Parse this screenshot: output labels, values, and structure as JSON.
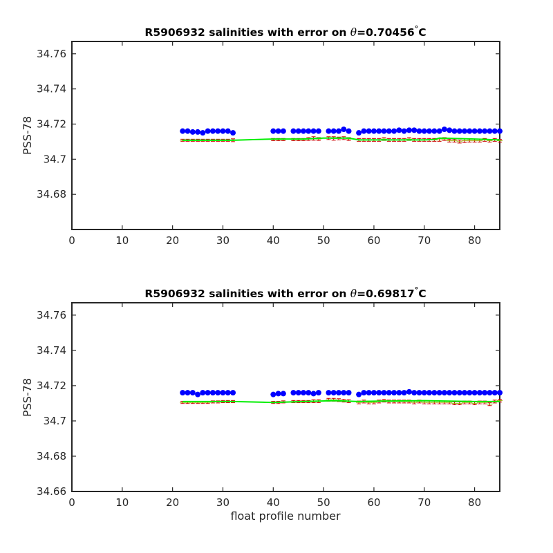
{
  "chart_data": [
    {
      "type": "scatter",
      "title_prefix": "R5906932 salinities with error on ",
      "title_symbol": "θ",
      "title_value": "=0.70456",
      "title_degree": "°",
      "title_unit": "C",
      "xlabel": "",
      "ylabel": "PSS-78",
      "xlim": [
        0,
        85
      ],
      "ylim": [
        34.66,
        34.767
      ],
      "xticks": [
        0,
        10,
        20,
        30,
        40,
        50,
        60,
        70,
        80
      ],
      "xtick_labels": [
        "0",
        "10",
        "20",
        "30",
        "40",
        "50",
        "60",
        "70",
        "80"
      ],
      "yticks": [
        34.68,
        34.7,
        34.72,
        34.74,
        34.76
      ],
      "ytick_labels": [
        "34.68",
        "34.7",
        "34.72",
        "34.74",
        "34.76"
      ],
      "grid": false,
      "series": [
        {
          "marker": "filled-circle",
          "color": "#0000ff",
          "x": [
            22,
            23,
            24,
            25,
            26,
            27,
            28,
            29,
            30,
            31,
            32,
            40,
            41,
            42,
            44,
            45,
            46,
            47,
            48,
            49,
            51,
            52,
            53,
            54,
            55,
            57,
            58,
            59,
            60,
            61,
            62,
            63,
            64,
            65,
            66,
            67,
            68,
            69,
            70,
            71,
            72,
            73,
            74,
            75,
            76,
            77,
            78,
            79,
            80,
            81,
            82,
            83,
            84,
            85
          ],
          "y": [
            34.716,
            34.716,
            34.7155,
            34.7155,
            34.715,
            34.716,
            34.716,
            34.716,
            34.716,
            34.716,
            34.715,
            34.716,
            34.716,
            34.716,
            34.716,
            34.716,
            34.716,
            34.716,
            34.716,
            34.716,
            34.716,
            34.716,
            34.716,
            34.717,
            34.716,
            34.715,
            34.716,
            34.716,
            34.716,
            34.716,
            34.716,
            34.716,
            34.716,
            34.7165,
            34.716,
            34.7165,
            34.7165,
            34.716,
            34.716,
            34.716,
            34.716,
            34.716,
            34.717,
            34.7165,
            34.716,
            34.716,
            34.716,
            34.716,
            34.716,
            34.716,
            34.716,
            34.716,
            34.716,
            34.716
          ]
        },
        {
          "marker": "errorbar",
          "color": "#cc0000",
          "x": [
            22,
            23,
            24,
            25,
            26,
            27,
            28,
            29,
            30,
            31,
            32,
            40,
            41,
            42,
            44,
            45,
            46,
            47,
            48,
            49,
            51,
            52,
            53,
            54,
            55,
            57,
            58,
            59,
            60,
            61,
            62,
            63,
            64,
            65,
            66,
            67,
            68,
            69,
            70,
            71,
            72,
            73,
            74,
            75,
            76,
            77,
            78,
            79,
            80,
            81,
            82,
            83,
            84,
            85
          ],
          "y": [
            34.7108,
            34.7108,
            34.7108,
            34.7108,
            34.7108,
            34.7108,
            34.7108,
            34.7108,
            34.7108,
            34.7108,
            34.7108,
            34.7112,
            34.7112,
            34.7112,
            34.7112,
            34.7112,
            34.7112,
            34.7115,
            34.7118,
            34.7115,
            34.712,
            34.7118,
            34.7118,
            34.712,
            34.7115,
            34.711,
            34.711,
            34.711,
            34.711,
            34.711,
            34.7115,
            34.711,
            34.711,
            34.711,
            34.711,
            34.7115,
            34.711,
            34.711,
            34.711,
            34.711,
            34.711,
            34.711,
            34.7115,
            34.7105,
            34.7105,
            34.71,
            34.7105,
            34.7105,
            34.7105,
            34.7105,
            34.711,
            34.7105,
            34.711,
            34.7105
          ],
          "err": [
            0.0006,
            0.0006,
            0.0006,
            0.0006,
            0.0006,
            0.0006,
            0.0006,
            0.0006,
            0.0006,
            0.0006,
            0.0008,
            0.0006,
            0.0006,
            0.0006,
            0.0006,
            0.0006,
            0.0006,
            0.0008,
            0.001,
            0.0008,
            0.0008,
            0.001,
            0.0008,
            0.0008,
            0.0008,
            0.0008,
            0.0008,
            0.0008,
            0.0008,
            0.0008,
            0.0008,
            0.0008,
            0.0008,
            0.0008,
            0.0008,
            0.0008,
            0.0008,
            0.0008,
            0.0008,
            0.0008,
            0.0008,
            0.0008,
            0.0008,
            0.0008,
            0.0008,
            0.0008,
            0.001,
            0.0008,
            0.0008,
            0.0008,
            0.0008,
            0.0008,
            0.0008,
            0.0008
          ]
        },
        {
          "marker": "line",
          "color": "#00ee00",
          "x": [
            22,
            32,
            40,
            46,
            50,
            55,
            57,
            70,
            72,
            73,
            80,
            85
          ],
          "y": [
            34.7108,
            34.7108,
            34.7115,
            34.7115,
            34.712,
            34.712,
            34.711,
            34.711,
            34.7112,
            34.712,
            34.7115,
            34.711
          ]
        }
      ]
    },
    {
      "type": "scatter",
      "title_prefix": "R5906932 salinities with error on ",
      "title_symbol": "θ",
      "title_value": "=0.69817",
      "title_degree": "°",
      "title_unit": "C",
      "xlabel": "float profile number",
      "ylabel": "PSS-78",
      "xlim": [
        0,
        85
      ],
      "ylim": [
        34.66,
        34.767
      ],
      "xticks": [
        0,
        10,
        20,
        30,
        40,
        50,
        60,
        70,
        80
      ],
      "xtick_labels": [
        "0",
        "10",
        "20",
        "30",
        "40",
        "50",
        "60",
        "70",
        "80"
      ],
      "yticks": [
        34.66,
        34.68,
        34.7,
        34.72,
        34.74,
        34.76
      ],
      "ytick_labels": [
        "34.66",
        "34.68",
        "34.7",
        "34.72",
        "34.74",
        "34.76"
      ],
      "grid": false,
      "series": [
        {
          "marker": "filled-circle",
          "color": "#0000ff",
          "x": [
            22,
            23,
            24,
            25,
            26,
            27,
            28,
            29,
            30,
            31,
            32,
            40,
            41,
            42,
            44,
            45,
            46,
            47,
            48,
            49,
            51,
            52,
            53,
            54,
            55,
            57,
            58,
            59,
            60,
            61,
            62,
            63,
            64,
            65,
            66,
            67,
            68,
            69,
            70,
            71,
            72,
            73,
            74,
            75,
            76,
            77,
            78,
            79,
            80,
            81,
            82,
            83,
            84,
            85
          ],
          "y": [
            34.716,
            34.716,
            34.716,
            34.715,
            34.716,
            34.716,
            34.716,
            34.716,
            34.716,
            34.716,
            34.716,
            34.715,
            34.7155,
            34.7155,
            34.716,
            34.716,
            34.716,
            34.716,
            34.7155,
            34.716,
            34.716,
            34.716,
            34.716,
            34.716,
            34.716,
            34.715,
            34.716,
            34.716,
            34.716,
            34.716,
            34.716,
            34.716,
            34.716,
            34.716,
            34.716,
            34.7165,
            34.716,
            34.716,
            34.716,
            34.716,
            34.716,
            34.716,
            34.716,
            34.716,
            34.716,
            34.716,
            34.716,
            34.716,
            34.716,
            34.716,
            34.716,
            34.716,
            34.716,
            34.716
          ]
        },
        {
          "marker": "errorbar",
          "color": "#cc0000",
          "x": [
            22,
            23,
            24,
            25,
            26,
            27,
            28,
            29,
            30,
            31,
            32,
            40,
            41,
            42,
            44,
            45,
            46,
            47,
            48,
            49,
            51,
            52,
            53,
            54,
            55,
            57,
            58,
            59,
            60,
            61,
            62,
            63,
            64,
            65,
            66,
            67,
            68,
            69,
            70,
            71,
            72,
            73,
            74,
            75,
            76,
            77,
            78,
            79,
            80,
            81,
            82,
            83,
            84,
            85
          ],
          "y": [
            34.7105,
            34.7105,
            34.7105,
            34.7105,
            34.7105,
            34.7105,
            34.7108,
            34.7108,
            34.711,
            34.711,
            34.711,
            34.7105,
            34.7105,
            34.7108,
            34.711,
            34.711,
            34.711,
            34.711,
            34.7112,
            34.7112,
            34.712,
            34.712,
            34.7118,
            34.7115,
            34.7112,
            34.7105,
            34.711,
            34.7105,
            34.7105,
            34.711,
            34.7115,
            34.711,
            34.711,
            34.711,
            34.711,
            34.711,
            34.7105,
            34.711,
            34.7105,
            34.7105,
            34.7105,
            34.7105,
            34.7105,
            34.7105,
            34.71,
            34.71,
            34.7105,
            34.7105,
            34.71,
            34.7105,
            34.7105,
            34.7095,
            34.711,
            34.7115
          ],
          "err": [
            0.0006,
            0.0006,
            0.0006,
            0.0006,
            0.0006,
            0.0006,
            0.0006,
            0.0006,
            0.0006,
            0.0006,
            0.0006,
            0.0006,
            0.0006,
            0.0006,
            0.0006,
            0.0006,
            0.0006,
            0.0006,
            0.0008,
            0.0008,
            0.0008,
            0.0008,
            0.0008,
            0.0008,
            0.0008,
            0.0008,
            0.0008,
            0.0008,
            0.0008,
            0.0008,
            0.0008,
            0.0008,
            0.0008,
            0.0008,
            0.0008,
            0.0008,
            0.0008,
            0.0008,
            0.0008,
            0.0008,
            0.0008,
            0.0008,
            0.0008,
            0.0008,
            0.0008,
            0.0008,
            0.0008,
            0.0008,
            0.0008,
            0.0008,
            0.0008,
            0.0008,
            0.0008,
            0.0008
          ]
        },
        {
          "marker": "line",
          "color": "#00ee00",
          "x": [
            22,
            32,
            40,
            46,
            52,
            57,
            60,
            70,
            80,
            85
          ],
          "y": [
            34.711,
            34.711,
            34.7105,
            34.711,
            34.7115,
            34.711,
            34.7112,
            34.7115,
            34.711,
            34.711
          ]
        }
      ]
    }
  ]
}
